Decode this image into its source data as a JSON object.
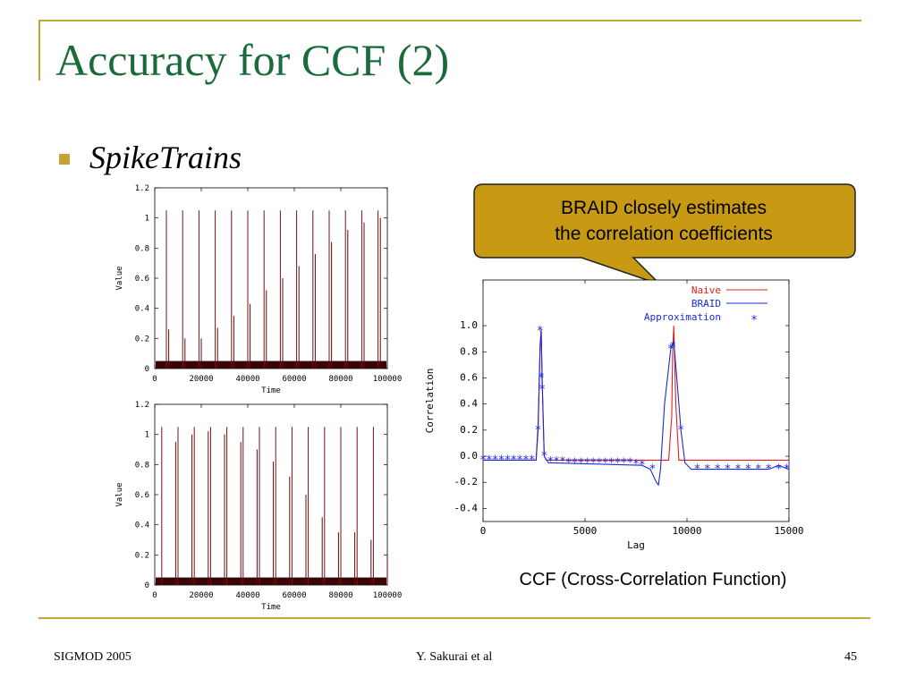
{
  "slide": {
    "title": "Accuracy for CCF (2)",
    "bullet": "SpikeTrains",
    "callout": [
      "BRAID closely estimates",
      "the correlation coefficients"
    ],
    "caption": "CCF (Cross-Correlation Function)",
    "footer": {
      "left": "SIGMOD 2005",
      "center": "Y. Sakurai et al",
      "right": "45"
    },
    "colors": {
      "title": "#1a6b3a",
      "accent": "#c8a433",
      "callout_fill": "#c89a14",
      "spike": "#7a1010",
      "naive": "#e02020",
      "braid": "#1a2ae0"
    }
  },
  "chart_data": [
    {
      "type": "line",
      "title": "",
      "xlabel": "Time",
      "ylabel": "Value",
      "xlim": [
        0,
        100000
      ],
      "ylim": [
        0,
        1.2
      ],
      "xticks": [
        "0",
        "20000",
        "40000",
        "60000",
        "80000",
        "100000"
      ],
      "yticks": [
        "0",
        "0.2",
        "0.4",
        "0.6",
        "0.8",
        "1",
        "1.2"
      ],
      "series": [
        {
          "style": "spikes",
          "x": [
            5000,
            12000,
            19000,
            26000,
            33000,
            40000,
            47000,
            54000,
            61000,
            68000,
            75000,
            82000,
            89000,
            96000
          ],
          "y": [
            1.05,
            1.05,
            1.05,
            1.05,
            1.05,
            1.05,
            1.05,
            1.05,
            1.05,
            1.05,
            1.05,
            1.05,
            1.05,
            1.05
          ]
        },
        {
          "style": "spikes",
          "x": [
            6000,
            13000,
            20000,
            27000,
            34000,
            41000,
            48000,
            55000,
            62000,
            69000,
            76000,
            83000,
            90000,
            97000
          ],
          "y": [
            0.26,
            0.2,
            0.2,
            0.27,
            0.35,
            0.43,
            0.52,
            0.6,
            0.68,
            0.76,
            0.84,
            0.92,
            0.97,
            1.0
          ]
        }
      ]
    },
    {
      "type": "line",
      "title": "",
      "xlabel": "Time",
      "ylabel": "Value",
      "xlim": [
        0,
        100000
      ],
      "ylim": [
        0,
        1.2
      ],
      "xticks": [
        "0",
        "20000",
        "40000",
        "60000",
        "80000",
        "100000"
      ],
      "yticks": [
        "0",
        "0.2",
        "0.4",
        "0.6",
        "0.8",
        "1",
        "1.2"
      ],
      "series": [
        {
          "style": "spikes",
          "x": [
            3000,
            10000,
            17000,
            24000,
            31000,
            38000,
            45000,
            52000,
            59000,
            66000,
            73000,
            80000,
            87000,
            94000
          ],
          "y": [
            1.05,
            1.05,
            1.05,
            1.05,
            1.05,
            1.05,
            1.05,
            1.05,
            1.05,
            1.05,
            1.05,
            1.05,
            1.05,
            1.05
          ]
        },
        {
          "style": "spikes",
          "x": [
            9000,
            16000,
            23000,
            30000,
            37000,
            44000,
            51000,
            58000,
            65000,
            72000,
            79000,
            86000,
            93000,
            100000
          ],
          "y": [
            0.95,
            1.0,
            1.02,
            1.0,
            0.95,
            0.9,
            0.82,
            0.72,
            0.6,
            0.45,
            0.35,
            0.35,
            0.3,
            0.22
          ]
        }
      ]
    },
    {
      "type": "line",
      "title": "",
      "xlabel": "Lag",
      "ylabel": "Correlation",
      "xlim": [
        0,
        15000
      ],
      "ylim": [
        -0.5,
        1.35
      ],
      "xticks": [
        "0",
        "5000",
        "10000",
        "15000"
      ],
      "yticks": [
        "1.0",
        "0.8",
        "0.6",
        "0.4",
        "0.2",
        "0.0",
        "-0.2",
        "-0.4"
      ],
      "legend_position": "top-right",
      "series": [
        {
          "name": "Naive",
          "x": [
            0,
            2600,
            2700,
            2800,
            2850,
            2900,
            3000,
            3100,
            9100,
            9250,
            9300,
            9350,
            9450,
            9600,
            15000
          ],
          "y": [
            -0.03,
            -0.03,
            0.2,
            0.85,
            0.97,
            0.6,
            0.0,
            -0.03,
            -0.03,
            0.3,
            0.8,
            1.0,
            0.4,
            -0.03,
            -0.03
          ]
        },
        {
          "name": "BRAID",
          "x": [
            0,
            2600,
            2700,
            2800,
            2850,
            2900,
            3000,
            3200,
            7800,
            8200,
            8500,
            8600,
            8700,
            8900,
            9200,
            9350,
            9500,
            9700,
            9900,
            10200,
            12000,
            14000,
            14500,
            15000
          ],
          "y": [
            -0.03,
            -0.03,
            0.25,
            0.85,
            0.96,
            0.55,
            0.0,
            -0.05,
            -0.07,
            -0.1,
            -0.2,
            -0.22,
            -0.1,
            0.4,
            0.82,
            0.88,
            0.6,
            0.2,
            -0.05,
            -0.1,
            -0.1,
            -0.1,
            -0.07,
            -0.1
          ]
        },
        {
          "name": "Approximation",
          "marker": "*",
          "x": [
            0,
            300,
            600,
            900,
            1200,
            1500,
            1800,
            2100,
            2400,
            2700,
            2800,
            2850,
            2900,
            3000,
            3300,
            3600,
            3900,
            4200,
            4500,
            4800,
            5100,
            5400,
            5700,
            6000,
            6300,
            6600,
            6900,
            7200,
            7500,
            7800,
            8300,
            9200,
            9300,
            9700,
            10500,
            11000,
            11500,
            12000,
            12500,
            13000,
            13500,
            14000,
            14500,
            14900
          ],
          "y": [
            -0.03,
            -0.03,
            -0.03,
            -0.03,
            -0.03,
            -0.03,
            -0.03,
            -0.03,
            -0.03,
            0.2,
            0.96,
            0.6,
            0.51,
            0.0,
            -0.04,
            -0.04,
            -0.04,
            -0.05,
            -0.05,
            -0.05,
            -0.05,
            -0.05,
            -0.05,
            -0.05,
            -0.05,
            -0.05,
            -0.05,
            -0.05,
            -0.06,
            -0.07,
            -0.1,
            0.82,
            0.84,
            0.2,
            -0.1,
            -0.1,
            -0.1,
            -0.1,
            -0.1,
            -0.1,
            -0.1,
            -0.1,
            -0.1,
            -0.1
          ]
        }
      ]
    }
  ]
}
